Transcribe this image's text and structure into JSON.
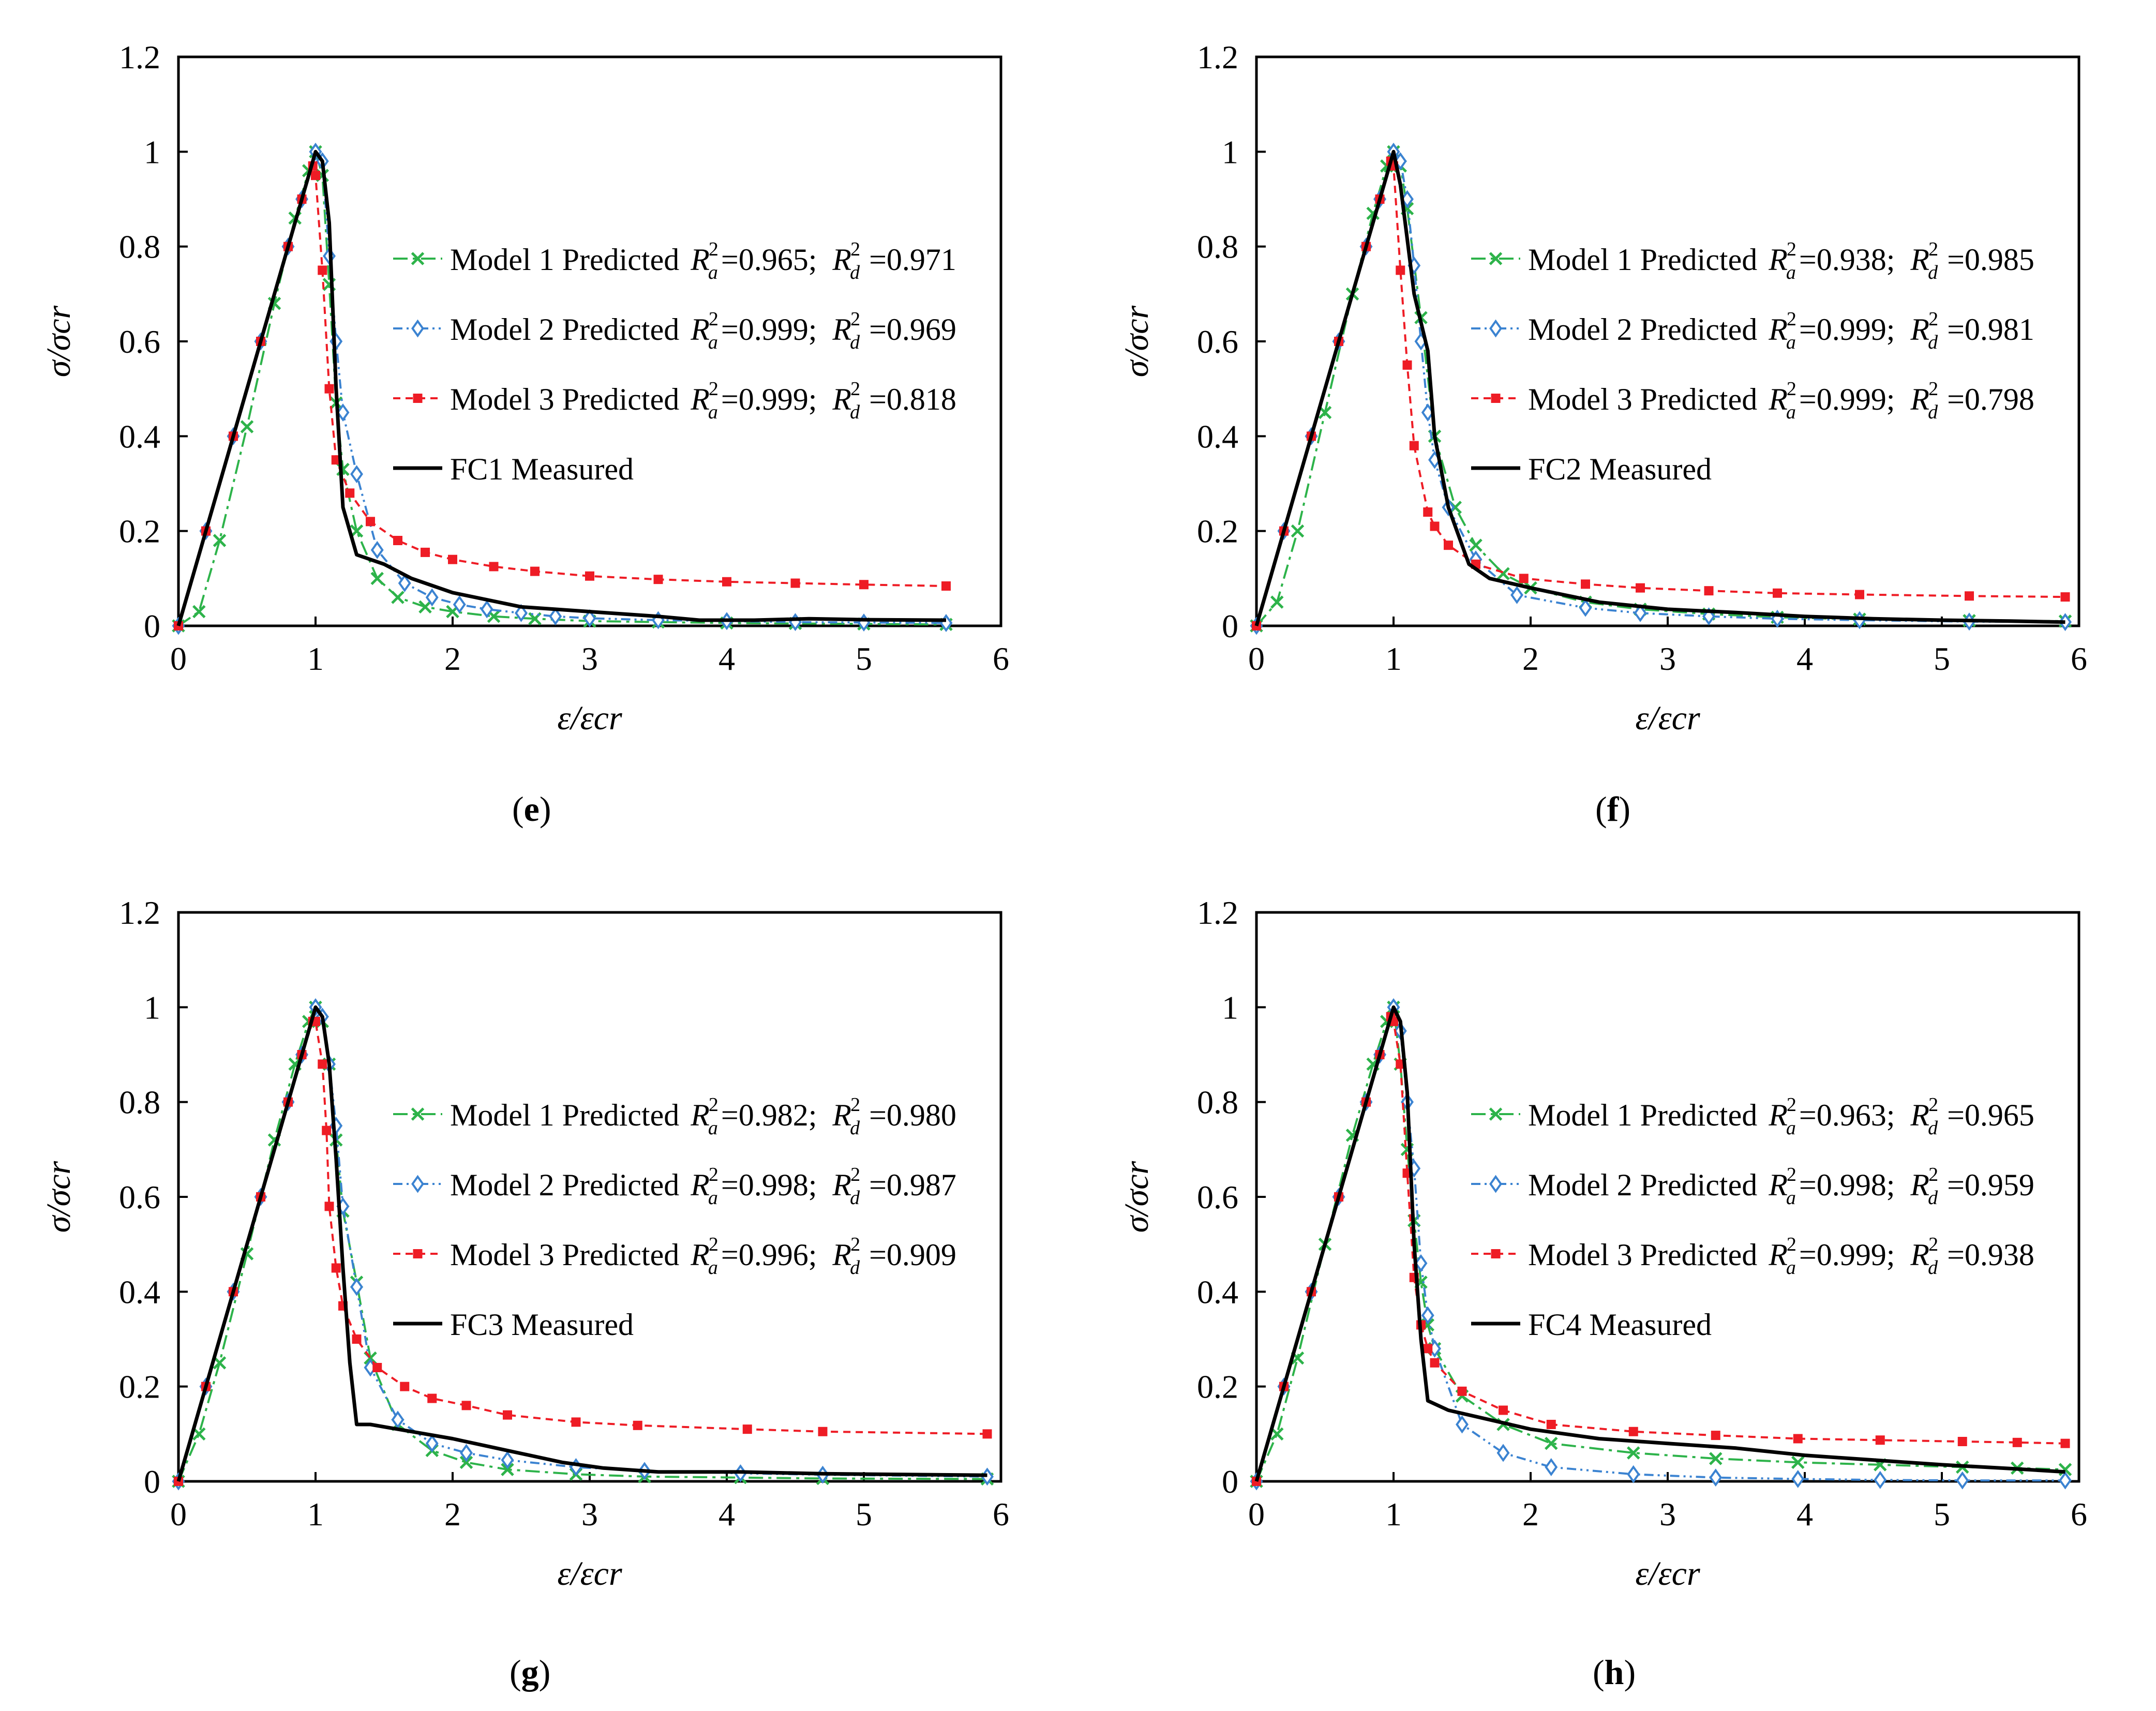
{
  "colors": {
    "model1": "#2db34a",
    "model2": "#3b83d1",
    "model3": "#ee1c25",
    "measured": "#000000"
  },
  "chart_data": [
    {
      "type": "line",
      "panel": "e",
      "xlabel": "ε/εcr",
      "ylabel": "σ/σcr",
      "xlim": [
        0,
        6
      ],
      "ylim": [
        0,
        1.2
      ],
      "xticks": [
        "0",
        "1",
        "2",
        "3",
        "4",
        "5",
        "6"
      ],
      "yticks": [
        "0",
        "0.2",
        "0.4",
        "0.6",
        "0.8",
        "1",
        "1.2"
      ],
      "legend": [
        {
          "series": "Model 1 Predicted",
          "ra2": "0.965",
          "rd2": "0.971"
        },
        {
          "series": "Model 2 Predicted",
          "ra2": "0.999",
          "rd2": "0.969"
        },
        {
          "series": "Model 3 Predicted",
          "ra2": "0.999",
          "rd2": "0.818"
        },
        {
          "series": "FC1 Measured"
        }
      ],
      "series": [
        {
          "name": "Model 1 Predicted",
          "x": [
            0,
            0.15,
            0.3,
            0.5,
            0.7,
            0.85,
            0.95,
            1.0,
            1.05,
            1.1,
            1.15,
            1.2,
            1.3,
            1.45,
            1.6,
            1.8,
            2.0,
            2.3,
            2.6,
            3.0,
            3.5,
            4.0,
            4.5,
            5.0,
            5.6
          ],
          "y": [
            0,
            0.03,
            0.18,
            0.42,
            0.68,
            0.86,
            0.96,
            1.0,
            0.95,
            0.72,
            0.47,
            0.33,
            0.2,
            0.1,
            0.06,
            0.04,
            0.03,
            0.02,
            0.015,
            0.01,
            0.008,
            0.006,
            0.005,
            0.004,
            0.003
          ]
        },
        {
          "name": "Model 2 Predicted",
          "x": [
            0,
            0.2,
            0.4,
            0.6,
            0.8,
            0.9,
            1.0,
            1.05,
            1.1,
            1.15,
            1.2,
            1.3,
            1.45,
            1.65,
            1.85,
            2.05,
            2.25,
            2.5,
            2.75,
            3.0,
            3.5,
            4.0,
            4.5,
            5.0,
            5.6
          ],
          "y": [
            0,
            0.2,
            0.4,
            0.6,
            0.8,
            0.9,
            1.0,
            0.98,
            0.78,
            0.6,
            0.45,
            0.32,
            0.16,
            0.09,
            0.06,
            0.045,
            0.035,
            0.027,
            0.02,
            0.016,
            0.012,
            0.01,
            0.008,
            0.007,
            0.006
          ]
        },
        {
          "name": "Model 3 Predicted",
          "x": [
            0,
            0.2,
            0.4,
            0.6,
            0.8,
            0.9,
            0.98,
            1.0,
            1.05,
            1.1,
            1.15,
            1.25,
            1.4,
            1.6,
            1.8,
            2.0,
            2.3,
            2.6,
            3.0,
            3.5,
            4.0,
            4.5,
            5.0,
            5.6
          ],
          "y": [
            0,
            0.2,
            0.4,
            0.6,
            0.8,
            0.9,
            0.97,
            0.95,
            0.75,
            0.5,
            0.35,
            0.28,
            0.22,
            0.18,
            0.155,
            0.14,
            0.125,
            0.115,
            0.105,
            0.098,
            0.093,
            0.09,
            0.087,
            0.084
          ]
        },
        {
          "name": "FC1 Measured",
          "x": [
            0,
            0.2,
            0.4,
            0.6,
            0.8,
            0.95,
            1.0,
            1.05,
            1.1,
            1.15,
            1.2,
            1.3,
            1.5,
            1.7,
            2.0,
            2.5,
            3.0,
            3.5,
            3.8,
            4.2,
            4.6,
            5.0,
            5.6
          ],
          "y": [
            0,
            0.2,
            0.4,
            0.6,
            0.8,
            0.95,
            1.0,
            0.98,
            0.85,
            0.5,
            0.25,
            0.15,
            0.13,
            0.1,
            0.07,
            0.04,
            0.03,
            0.02,
            0.012,
            0.012,
            0.015,
            0.013,
            0.012
          ]
        }
      ]
    },
    {
      "type": "line",
      "panel": "f",
      "xlabel": "ε/εcr",
      "ylabel": "σ/σcr",
      "xlim": [
        0,
        6
      ],
      "ylim": [
        0,
        1.2
      ],
      "xticks": [
        "0",
        "1",
        "2",
        "3",
        "4",
        "5",
        "6"
      ],
      "yticks": [
        "0",
        "0.2",
        "0.4",
        "0.6",
        "0.8",
        "1",
        "1.2"
      ],
      "legend": [
        {
          "series": "Model 1 Predicted",
          "ra2": "0.938",
          "rd2": "0.985"
        },
        {
          "series": "Model 2 Predicted",
          "ra2": "0.999",
          "rd2": "0.981"
        },
        {
          "series": "Model 3 Predicted",
          "ra2": "0.999",
          "rd2": "0.798"
        },
        {
          "series": "FC2 Measured"
        }
      ],
      "series": [
        {
          "name": "Model 1 Predicted",
          "x": [
            0,
            0.15,
            0.3,
            0.5,
            0.7,
            0.85,
            0.95,
            1.0,
            1.05,
            1.1,
            1.2,
            1.3,
            1.45,
            1.6,
            1.8,
            2.0,
            2.4,
            2.8,
            3.3,
            3.8,
            4.4,
            5.2,
            5.9
          ],
          "y": [
            0,
            0.05,
            0.2,
            0.45,
            0.7,
            0.87,
            0.97,
            1.0,
            0.97,
            0.88,
            0.65,
            0.4,
            0.25,
            0.17,
            0.11,
            0.08,
            0.05,
            0.035,
            0.025,
            0.018,
            0.014,
            0.011,
            0.01
          ]
        },
        {
          "name": "Model 2 Predicted",
          "x": [
            0,
            0.2,
            0.4,
            0.6,
            0.8,
            0.9,
            1.0,
            1.05,
            1.1,
            1.15,
            1.2,
            1.25,
            1.3,
            1.4,
            1.6,
            1.9,
            2.4,
            2.8,
            3.3,
            3.8,
            4.4,
            5.2,
            5.9
          ],
          "y": [
            0,
            0.2,
            0.4,
            0.6,
            0.8,
            0.9,
            1.0,
            0.98,
            0.9,
            0.76,
            0.6,
            0.45,
            0.35,
            0.25,
            0.14,
            0.065,
            0.038,
            0.027,
            0.02,
            0.015,
            0.012,
            0.009,
            0.008
          ]
        },
        {
          "name": "Model 3 Predicted",
          "x": [
            0,
            0.2,
            0.4,
            0.6,
            0.8,
            0.9,
            0.98,
            1.0,
            1.05,
            1.1,
            1.15,
            1.25,
            1.3,
            1.4,
            1.6,
            1.95,
            2.4,
            2.8,
            3.3,
            3.8,
            4.4,
            5.2,
            5.9
          ],
          "y": [
            0,
            0.2,
            0.4,
            0.6,
            0.8,
            0.9,
            0.98,
            0.97,
            0.75,
            0.55,
            0.38,
            0.24,
            0.21,
            0.17,
            0.13,
            0.1,
            0.088,
            0.08,
            0.074,
            0.069,
            0.066,
            0.063,
            0.061
          ]
        },
        {
          "name": "FC2 Measured",
          "x": [
            0,
            0.2,
            0.4,
            0.6,
            0.8,
            0.95,
            1.0,
            1.05,
            1.15,
            1.25,
            1.3,
            1.4,
            1.55,
            1.7,
            2.0,
            2.5,
            3.0,
            3.5,
            4.0,
            4.5,
            5.0,
            5.5,
            5.9
          ],
          "y": [
            0,
            0.2,
            0.4,
            0.6,
            0.8,
            0.95,
            1.0,
            0.93,
            0.7,
            0.58,
            0.4,
            0.25,
            0.13,
            0.1,
            0.08,
            0.05,
            0.035,
            0.028,
            0.02,
            0.015,
            0.012,
            0.01,
            0.008
          ]
        }
      ]
    },
    {
      "type": "line",
      "panel": "g",
      "xlabel": "ε/εcr",
      "ylabel": "σ/σcr",
      "xlim": [
        0,
        6
      ],
      "ylim": [
        0,
        1.2
      ],
      "xticks": [
        "0",
        "1",
        "2",
        "3",
        "4",
        "5",
        "6"
      ],
      "yticks": [
        "0",
        "0.2",
        "0.4",
        "0.6",
        "0.8",
        "1",
        "1.2"
      ],
      "legend": [
        {
          "series": "Model 1 Predicted",
          "ra2": "0.982",
          "rd2": "0.980"
        },
        {
          "series": "Model 2 Predicted",
          "ra2": "0.998",
          "rd2": "0.987"
        },
        {
          "series": "Model 3 Predicted",
          "ra2": "0.996",
          "rd2": "0.909"
        },
        {
          "series": "FC3 Measured"
        }
      ],
      "series": [
        {
          "name": "Model 1 Predicted",
          "x": [
            0,
            0.15,
            0.3,
            0.5,
            0.7,
            0.85,
            0.95,
            1.0,
            1.05,
            1.1,
            1.15,
            1.2,
            1.3,
            1.4,
            1.6,
            1.85,
            2.1,
            2.4,
            2.9,
            3.4,
            4.1,
            4.7,
            5.9
          ],
          "y": [
            0,
            0.1,
            0.25,
            0.48,
            0.72,
            0.88,
            0.97,
            1.0,
            0.97,
            0.88,
            0.72,
            0.57,
            0.42,
            0.26,
            0.12,
            0.065,
            0.04,
            0.025,
            0.015,
            0.01,
            0.008,
            0.006,
            0.005
          ]
        },
        {
          "name": "Model 2 Predicted",
          "x": [
            0,
            0.2,
            0.4,
            0.6,
            0.8,
            0.9,
            1.0,
            1.05,
            1.1,
            1.15,
            1.2,
            1.3,
            1.4,
            1.6,
            1.85,
            2.1,
            2.4,
            2.9,
            3.4,
            4.1,
            4.7,
            5.9
          ],
          "y": [
            0,
            0.2,
            0.4,
            0.6,
            0.8,
            0.9,
            1.0,
            0.98,
            0.88,
            0.75,
            0.58,
            0.41,
            0.24,
            0.13,
            0.08,
            0.06,
            0.045,
            0.03,
            0.022,
            0.017,
            0.014,
            0.01
          ]
        },
        {
          "name": "Model 3 Predicted",
          "x": [
            0,
            0.2,
            0.4,
            0.6,
            0.8,
            0.9,
            0.98,
            1.0,
            1.05,
            1.08,
            1.1,
            1.15,
            1.2,
            1.3,
            1.45,
            1.65,
            1.85,
            2.1,
            2.4,
            2.9,
            3.35,
            4.15,
            4.7,
            5.9
          ],
          "y": [
            0,
            0.2,
            0.4,
            0.6,
            0.8,
            0.9,
            0.97,
            0.97,
            0.88,
            0.74,
            0.58,
            0.45,
            0.37,
            0.3,
            0.24,
            0.2,
            0.175,
            0.16,
            0.14,
            0.125,
            0.118,
            0.11,
            0.105,
            0.1
          ]
        },
        {
          "name": "FC3 Measured",
          "x": [
            0,
            0.2,
            0.4,
            0.6,
            0.8,
            0.95,
            1.0,
            1.05,
            1.1,
            1.15,
            1.2,
            1.25,
            1.3,
            1.4,
            1.6,
            1.8,
            2.0,
            2.4,
            2.8,
            3.1,
            3.5,
            4.1,
            4.7,
            5.9
          ],
          "y": [
            0,
            0.2,
            0.4,
            0.6,
            0.8,
            0.95,
            1.0,
            0.98,
            0.88,
            0.68,
            0.45,
            0.25,
            0.12,
            0.12,
            0.11,
            0.1,
            0.09,
            0.065,
            0.04,
            0.028,
            0.02,
            0.02,
            0.016,
            0.013
          ]
        }
      ]
    },
    {
      "type": "line",
      "panel": "h",
      "xlabel": "ε/εcr",
      "ylabel": "σ/σcr",
      "xlim": [
        0,
        6
      ],
      "ylim": [
        0,
        1.2
      ],
      "xticks": [
        "0",
        "1",
        "2",
        "3",
        "4",
        "5",
        "6"
      ],
      "yticks": [
        "0",
        "0.2",
        "0.4",
        "0.6",
        "0.8",
        "1",
        "1.2"
      ],
      "legend": [
        {
          "series": "Model 1 Predicted",
          "ra2": "0.963",
          "rd2": "0.965"
        },
        {
          "series": "Model 2 Predicted",
          "ra2": "0.998",
          "rd2": "0.959"
        },
        {
          "series": "Model 3 Predicted",
          "ra2": "0.999",
          "rd2": "0.938"
        },
        {
          "series": "FC4 Measured"
        }
      ],
      "series": [
        {
          "name": "Model 1 Predicted",
          "x": [
            0,
            0.15,
            0.3,
            0.5,
            0.7,
            0.85,
            0.95,
            1.0,
            1.05,
            1.1,
            1.15,
            1.2,
            1.25,
            1.3,
            1.5,
            1.8,
            2.15,
            2.75,
            3.35,
            3.95,
            4.55,
            5.15,
            5.55,
            5.9
          ],
          "y": [
            0,
            0.1,
            0.26,
            0.5,
            0.73,
            0.88,
            0.97,
            1.0,
            0.88,
            0.7,
            0.55,
            0.42,
            0.33,
            0.28,
            0.18,
            0.12,
            0.08,
            0.06,
            0.048,
            0.04,
            0.035,
            0.03,
            0.028,
            0.025
          ]
        },
        {
          "name": "Model 2 Predicted",
          "x": [
            0,
            0.2,
            0.4,
            0.6,
            0.8,
            0.9,
            1.0,
            1.05,
            1.1,
            1.15,
            1.2,
            1.25,
            1.3,
            1.5,
            1.8,
            2.15,
            2.75,
            3.35,
            3.95,
            4.55,
            5.15,
            5.9
          ],
          "y": [
            0,
            0.2,
            0.4,
            0.6,
            0.8,
            0.9,
            1.0,
            0.95,
            0.8,
            0.66,
            0.46,
            0.35,
            0.28,
            0.12,
            0.06,
            0.03,
            0.015,
            0.008,
            0.005,
            0.003,
            0.002,
            0.002
          ]
        },
        {
          "name": "Model 3 Predicted",
          "x": [
            0,
            0.2,
            0.4,
            0.6,
            0.8,
            0.9,
            0.98,
            1.0,
            1.05,
            1.1,
            1.15,
            1.2,
            1.25,
            1.3,
            1.5,
            1.8,
            2.15,
            2.75,
            3.35,
            3.95,
            4.55,
            5.15,
            5.55,
            5.9
          ],
          "y": [
            0,
            0.2,
            0.4,
            0.6,
            0.8,
            0.9,
            0.98,
            0.97,
            0.88,
            0.65,
            0.43,
            0.33,
            0.28,
            0.25,
            0.19,
            0.15,
            0.12,
            0.105,
            0.097,
            0.09,
            0.087,
            0.084,
            0.082,
            0.08
          ]
        },
        {
          "name": "FC4 Measured",
          "x": [
            0,
            0.2,
            0.4,
            0.6,
            0.8,
            0.95,
            1.0,
            1.05,
            1.1,
            1.15,
            1.2,
            1.25,
            1.4,
            1.7,
            2.0,
            2.5,
            3.0,
            3.5,
            4.0,
            4.5,
            5.0,
            5.5,
            5.9
          ],
          "y": [
            0,
            0.2,
            0.4,
            0.6,
            0.8,
            0.95,
            1.0,
            0.97,
            0.82,
            0.5,
            0.3,
            0.17,
            0.15,
            0.13,
            0.11,
            0.09,
            0.08,
            0.07,
            0.055,
            0.045,
            0.035,
            0.027,
            0.02
          ]
        }
      ]
    }
  ]
}
